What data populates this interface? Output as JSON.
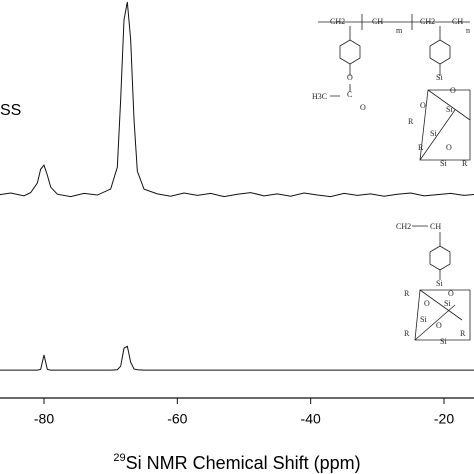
{
  "chart_data": {
    "type": "line",
    "annotation": "SS",
    "xlabel": {
      "superscript": "29",
      "text": "Si NMR Chemical Shift (ppm)"
    },
    "x": [
      -87,
      -85,
      -83,
      -82,
      -81,
      -80.5,
      -80,
      -79.5,
      -79,
      -78,
      -76,
      -74,
      -72,
      -70,
      -69,
      -68.5,
      -68,
      -67.5,
      -67,
      -66.5,
      -66,
      -65,
      -63,
      -61,
      -59,
      -57,
      -55,
      -53,
      -51,
      -49,
      -47,
      -45,
      -43,
      -41,
      -39,
      -37,
      -35,
      -33,
      -31,
      -29,
      -27,
      -25,
      -23,
      -21,
      -19,
      -17,
      -15
    ],
    "series": [
      {
        "color": "#111111",
        "values": [
          51,
          51.5,
          50.8,
          51.6,
          54,
          57.5,
          58.5,
          56,
          53,
          51.2,
          50.6,
          51.4,
          51,
          52.5,
          58,
          75,
          95,
          99.5,
          90,
          70,
          57,
          52.5,
          51.3,
          50.7,
          51.5,
          50.9,
          51.4,
          50.6,
          51.2,
          51.6,
          50.8,
          51.3,
          50.7,
          51.5,
          51,
          50.6,
          51.4,
          50.9,
          51.3,
          50.7,
          51.2,
          51.5,
          50.8,
          51.1,
          51.4,
          50.9,
          51.2
        ]
      },
      {
        "color": "#111111",
        "values": [
          7,
          7,
          7,
          7,
          7,
          7.2,
          10.8,
          7.2,
          7,
          7,
          7,
          7,
          7,
          7,
          7.1,
          8,
          12.5,
          13,
          9,
          7.3,
          7.1,
          7,
          7,
          7,
          7,
          7,
          7,
          7,
          7,
          7,
          7,
          7,
          7,
          7,
          7,
          7,
          7,
          7,
          7,
          7,
          7,
          7,
          7,
          7,
          7,
          7,
          7
        ]
      }
    ],
    "xlim": [
      -86.6,
      -15.5
    ],
    "xticks": [
      -80,
      -60,
      -40,
      -20
    ],
    "ylim": [
      0,
      100
    ],
    "structures": [
      {
        "labels": [
          "CH2",
          "CH",
          "m",
          "CH2",
          "CH",
          "n",
          "O",
          "C",
          "H3C",
          "O",
          "Si",
          "O",
          "Si",
          "O",
          "R",
          "Si",
          "R",
          "O",
          "Si",
          "R"
        ]
      },
      {
        "labels": [
          "CH2",
          "CH",
          "Si",
          "O",
          "Si",
          "R",
          "O",
          "Si",
          "R",
          "O",
          "Si",
          "R"
        ]
      }
    ]
  }
}
